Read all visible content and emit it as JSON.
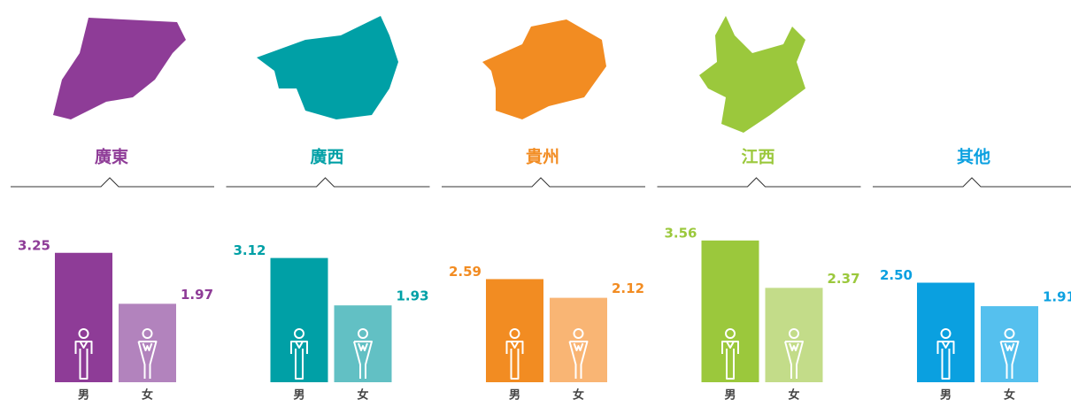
{
  "chart_data": [
    {
      "type": "bar",
      "title": "廣東",
      "categories": [
        "男",
        "女"
      ],
      "values": [
        3.25,
        1.97
      ],
      "value_labels": [
        "3.25",
        "1.97"
      ],
      "colors": [
        "#8e3c97",
        "#b283bd"
      ]
    },
    {
      "type": "bar",
      "title": "廣西",
      "categories": [
        "男",
        "女"
      ],
      "values": [
        3.12,
        1.93
      ],
      "value_labels": [
        "3.12",
        "1.93"
      ],
      "colors": [
        "#00a0a6",
        "#62c0c4"
      ]
    },
    {
      "type": "bar",
      "title": "貴州",
      "categories": [
        "男",
        "女"
      ],
      "values": [
        2.59,
        2.12
      ],
      "value_labels": [
        "2.59",
        "2.12"
      ],
      "colors": [
        "#f28c22",
        "#f9b574"
      ]
    },
    {
      "type": "bar",
      "title": "江西",
      "categories": [
        "男",
        "女"
      ],
      "values": [
        3.56,
        2.37
      ],
      "value_labels": [
        "3.56",
        "2.37"
      ],
      "colors": [
        "#9bc83c",
        "#c3dc89"
      ]
    },
    {
      "type": "bar",
      "title": "其他",
      "categories": [
        "男",
        "女"
      ],
      "values": [
        2.5,
        1.91
      ],
      "value_labels": [
        "2.50",
        "1.91"
      ],
      "colors": [
        "#0aa0e0",
        "#55c0ee"
      ]
    }
  ]
}
